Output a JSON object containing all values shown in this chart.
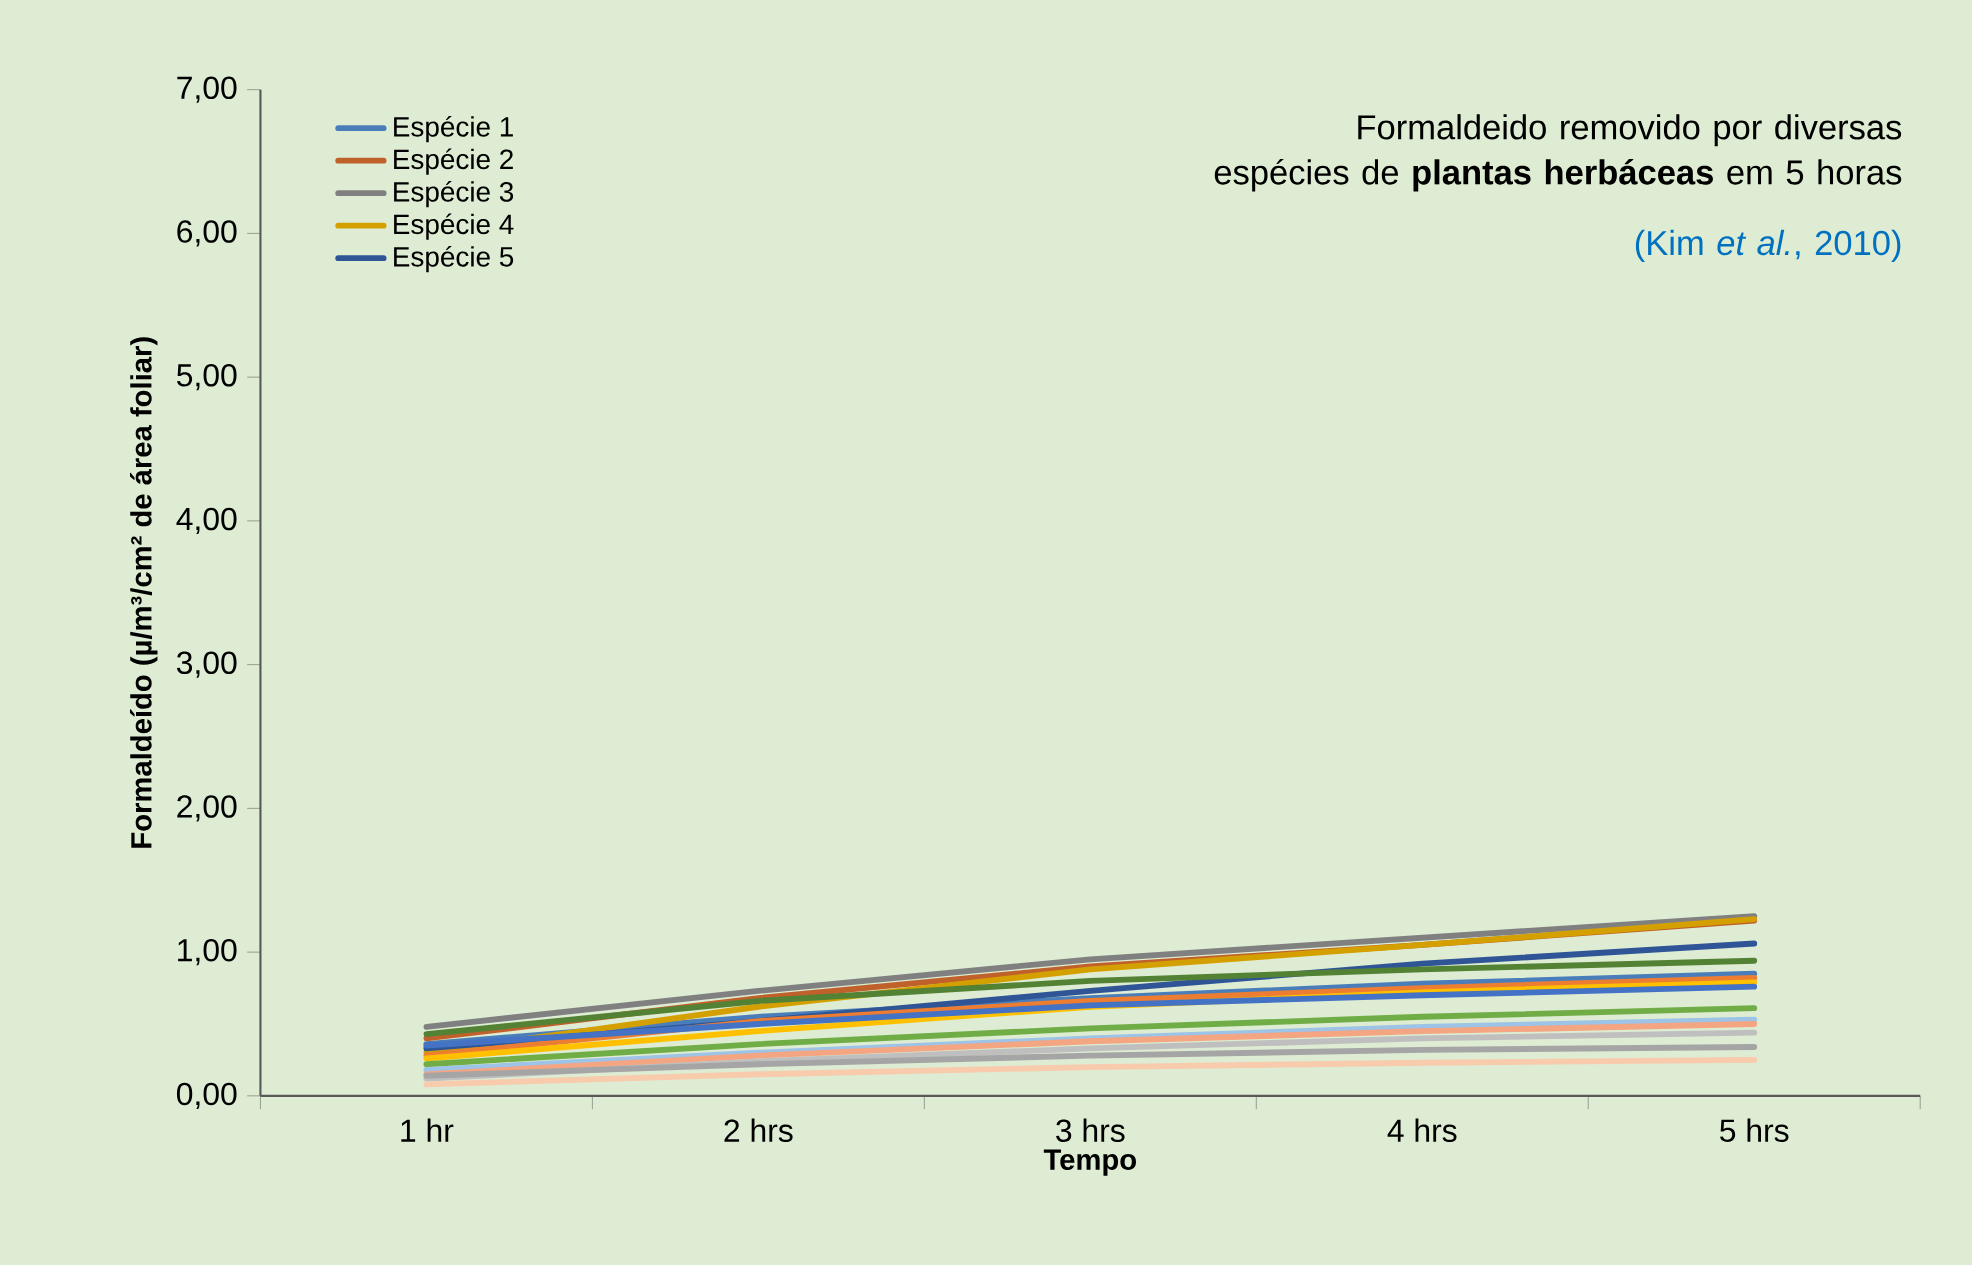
{
  "chart_data": {
    "type": "line",
    "title": "Formaldeido removido por diversas espécies de **plantas herbáceas** em 5 horas",
    "annotations": [
      "(Kim *et al.*, 2010)"
    ],
    "xlabel": "Tempo",
    "ylabel": "Formaldeído (µ/m³/cm² de área foliar)",
    "categories": [
      "1 hr",
      "2 hrs",
      "3 hrs",
      "4 hrs",
      "5 hrs"
    ],
    "ylim": [
      0,
      7
    ],
    "yticks": [
      {
        "value": 0,
        "label": "0,00"
      },
      {
        "value": 1,
        "label": "1,00"
      },
      {
        "value": 2,
        "label": "2,00"
      },
      {
        "value": 3,
        "label": "3,00"
      },
      {
        "value": 4,
        "label": "4,00"
      },
      {
        "value": 5,
        "label": "5,00"
      },
      {
        "value": 6,
        "label": "6,00"
      },
      {
        "value": 7,
        "label": "7,00"
      }
    ],
    "grid": false,
    "legend": "top left",
    "line_style": "solid",
    "series": [
      {
        "name": "Espécie 1",
        "color": "#4a7ebb",
        "values": [
          0.36,
          0.55,
          0.68,
          0.78,
          0.85
        ]
      },
      {
        "name": "Espécie 2",
        "color": "#c0602a",
        "values": [
          0.4,
          0.68,
          0.9,
          1.05,
          1.22
        ]
      },
      {
        "name": "Espécie 3",
        "color": "#808080",
        "values": [
          0.48,
          0.73,
          0.95,
          1.1,
          1.25
        ]
      },
      {
        "name": "Espécie 4",
        "color": "#d4a000",
        "values": [
          0.3,
          0.62,
          0.88,
          1.05,
          1.23
        ]
      },
      {
        "name": "Espécie 5",
        "color": "#2f5597",
        "values": [
          0.33,
          0.52,
          0.73,
          0.92,
          1.06
        ]
      },
      {
        "color": "#548235",
        "values": [
          0.43,
          0.66,
          0.8,
          0.88,
          0.94
        ]
      },
      {
        "color": "#ed7d31",
        "values": [
          0.28,
          0.52,
          0.66,
          0.75,
          0.82
        ]
      },
      {
        "color": "#ffc000",
        "values": [
          0.26,
          0.45,
          0.62,
          0.72,
          0.79
        ]
      },
      {
        "color": "#4472c4",
        "values": [
          0.35,
          0.5,
          0.63,
          0.7,
          0.76
        ]
      },
      {
        "color": "#70ad47",
        "values": [
          0.22,
          0.36,
          0.47,
          0.55,
          0.61
        ]
      },
      {
        "color": "#9dc3e6",
        "values": [
          0.18,
          0.3,
          0.4,
          0.48,
          0.53
        ]
      },
      {
        "color": "#f4a582",
        "values": [
          0.15,
          0.28,
          0.38,
          0.45,
          0.5
        ]
      },
      {
        "color": "#bfbfbf",
        "values": [
          0.12,
          0.24,
          0.33,
          0.4,
          0.44
        ]
      },
      {
        "color": "#a5a5a5",
        "values": [
          0.14,
          0.22,
          0.28,
          0.32,
          0.34
        ]
      },
      {
        "color": "#f8cbad",
        "values": [
          0.08,
          0.15,
          0.2,
          0.23,
          0.25
        ]
      }
    ]
  }
}
